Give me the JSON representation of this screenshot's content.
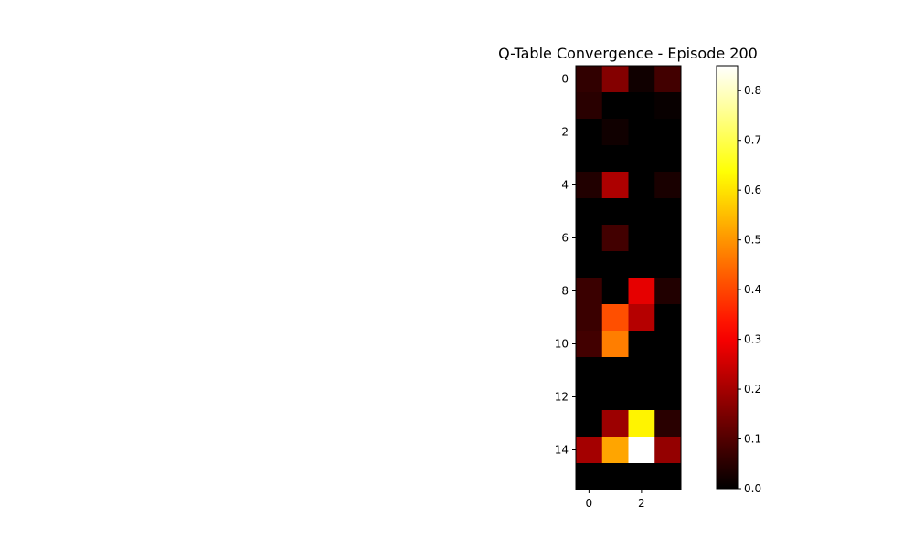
{
  "chart_data": {
    "type": "heatmap",
    "title": "Q-Table Convergence - Episode 200",
    "xlabel": "",
    "ylabel": "",
    "x_ticks": [
      0,
      2
    ],
    "y_ticks": [
      0,
      2,
      4,
      6,
      8,
      10,
      12,
      14
    ],
    "n_rows": 16,
    "n_cols": 4,
    "colormap": "hot",
    "vmin": 0.0,
    "vmax": 0.85,
    "colorbar_ticks": [
      "0.0",
      "0.1",
      "0.2",
      "0.3",
      "0.4",
      "0.5",
      "0.6",
      "0.7",
      "0.8"
    ],
    "colorbar_tick_values": [
      0.0,
      0.1,
      0.2,
      0.3,
      0.4,
      0.5,
      0.6,
      0.7,
      0.8
    ],
    "values": [
      [
        0.06,
        0.16,
        0.02,
        0.08
      ],
      [
        0.05,
        0.0,
        0.0,
        0.01
      ],
      [
        0.0,
        0.02,
        0.0,
        0.0
      ],
      [
        0.0,
        0.0,
        0.0,
        0.0
      ],
      [
        0.04,
        0.21,
        0.0,
        0.03
      ],
      [
        0.0,
        0.0,
        0.0,
        0.0
      ],
      [
        0.0,
        0.08,
        0.0,
        0.0
      ],
      [
        0.0,
        0.0,
        0.0,
        0.0
      ],
      [
        0.07,
        0.0,
        0.28,
        0.04
      ],
      [
        0.07,
        0.41,
        0.22,
        0.0
      ],
      [
        0.08,
        0.47,
        0.0,
        0.0
      ],
      [
        0.0,
        0.0,
        0.0,
        0.0
      ],
      [
        0.0,
        0.0,
        0.0,
        0.0
      ],
      [
        0.0,
        0.19,
        0.62,
        0.05
      ],
      [
        0.2,
        0.52,
        0.85,
        0.18
      ],
      [
        0.0,
        0.0,
        0.0,
        0.0
      ]
    ]
  }
}
